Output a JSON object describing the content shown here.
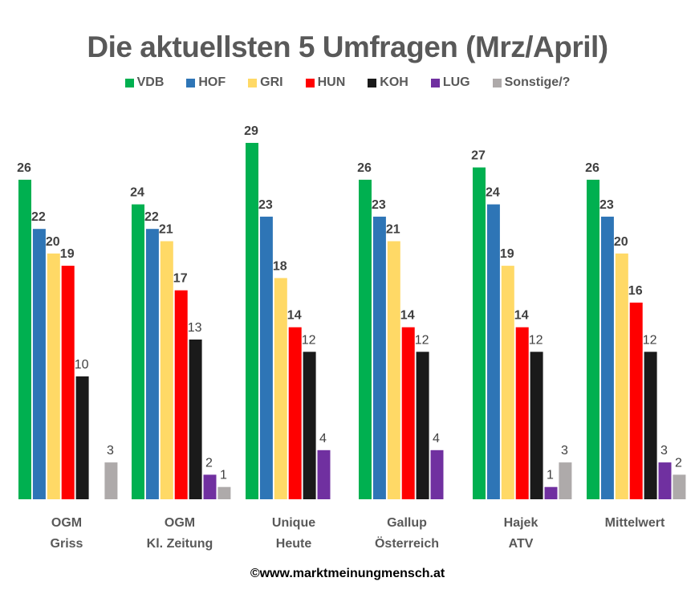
{
  "chart_data": {
    "type": "bar",
    "title": "Die aktuellsten 5 Umfragen (Mrz/April)",
    "xlabel": "",
    "ylabel": "",
    "ylim": [
      0,
      29
    ],
    "grid": false,
    "legend_position": "top",
    "categories": [
      [
        "OGM",
        "Griss"
      ],
      [
        "OGM",
        "Kl. Zeitung"
      ],
      [
        "Unique",
        "Heute"
      ],
      [
        "Gallup",
        "Österreich"
      ],
      [
        "Hajek",
        "ATV"
      ],
      [
        "Mittelwert",
        ""
      ]
    ],
    "series": [
      {
        "name": "VDB",
        "color": "#00B050",
        "bold": true,
        "values": [
          26,
          24,
          29,
          26,
          27,
          26
        ]
      },
      {
        "name": "HOF",
        "color": "#2E75B6",
        "bold": true,
        "values": [
          22,
          22,
          23,
          23,
          24,
          23
        ]
      },
      {
        "name": "GRI",
        "color": "#FFD966",
        "bold": true,
        "values": [
          20,
          21,
          18,
          21,
          19,
          20
        ]
      },
      {
        "name": "HUN",
        "color": "#FF0000",
        "bold": true,
        "values": [
          19,
          17,
          14,
          14,
          14,
          16
        ]
      },
      {
        "name": "KOH",
        "color": "#1A1A1A",
        "bold": false,
        "values": [
          10,
          13,
          12,
          12,
          12,
          12
        ]
      },
      {
        "name": "LUG",
        "color": "#7030A0",
        "bold": false,
        "values": [
          null,
          2,
          4,
          4,
          1,
          3
        ]
      },
      {
        "name": "Sonstige/?",
        "color": "#AEAAAA",
        "bold": false,
        "values": [
          3,
          1,
          null,
          null,
          3,
          2
        ]
      }
    ]
  },
  "footer": "©www.marktmeinungmensch.at"
}
